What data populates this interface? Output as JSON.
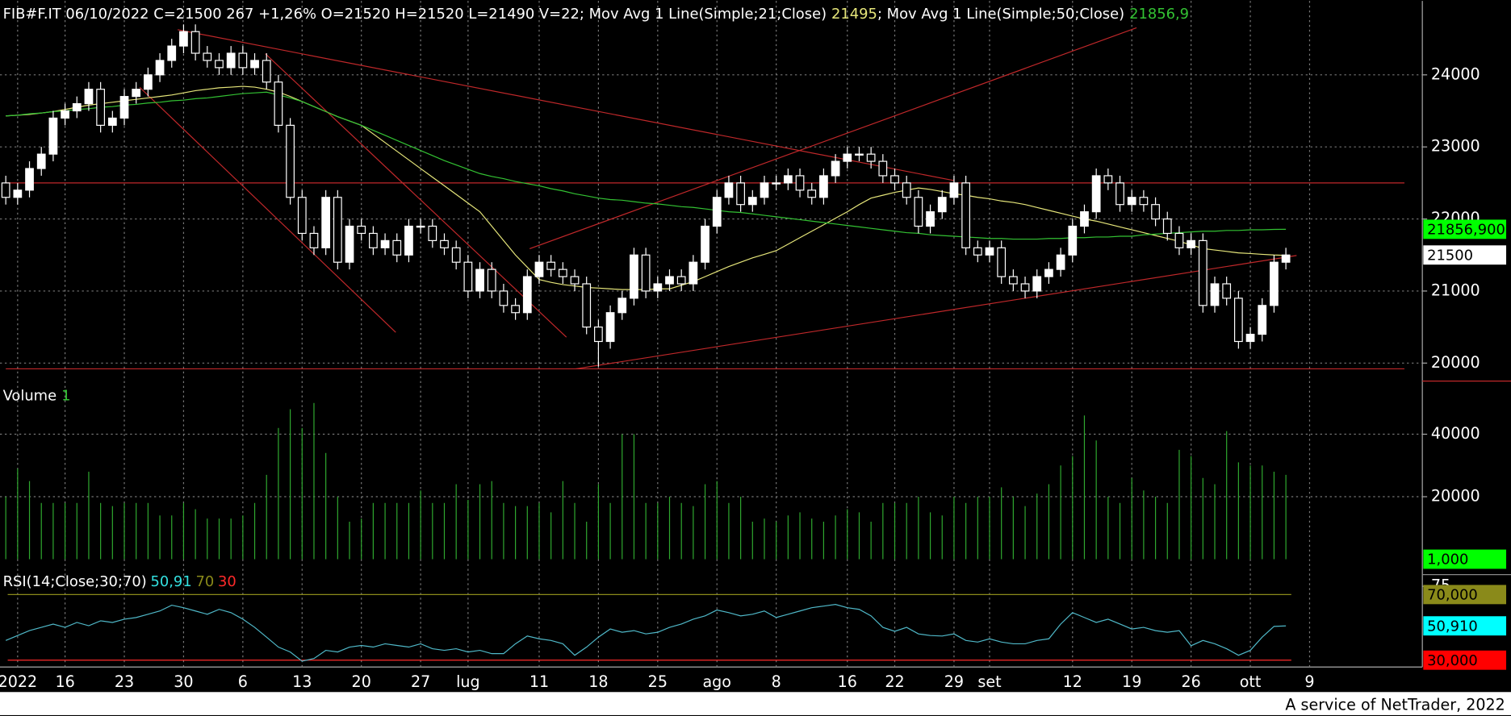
{
  "chart_data": [
    {
      "type": "candlestick",
      "title": "FIB#F.IT 06/10/2022 C=21500 267 +1,26% O=21520 H=21520 L=21490 V=22",
      "categories": [
        null,
        "2022",
        null,
        null,
        null,
        "16",
        null,
        null,
        null,
        null,
        "23",
        null,
        null,
        null,
        null,
        "30",
        null,
        null,
        null,
        null,
        "6",
        null,
        null,
        null,
        null,
        "13",
        null,
        null,
        null,
        null,
        "20",
        null,
        null,
        null,
        null,
        "27",
        null,
        null,
        null,
        "lug",
        null,
        null,
        null,
        null,
        null,
        "11",
        null,
        null,
        null,
        null,
        "18",
        null,
        null,
        null,
        null,
        "25",
        null,
        null,
        null,
        null,
        "ago",
        null,
        null,
        null,
        null,
        "8",
        null,
        null,
        null,
        null,
        null,
        "16",
        null,
        null,
        null,
        "22",
        null,
        null,
        null,
        null,
        "29",
        null,
        null,
        "set",
        null,
        null,
        null,
        null,
        null,
        null,
        "12",
        null,
        null,
        null,
        null,
        "19",
        null,
        null,
        null,
        null,
        "26",
        null,
        null,
        null,
        null,
        "ott",
        null,
        null,
        null,
        null,
        "9"
      ],
      "open": [
        22500,
        22300,
        22400,
        22700,
        22900,
        23400,
        23500,
        23600,
        23800,
        23300,
        23400,
        23700,
        23800,
        24000,
        24200,
        24400,
        24600,
        24300,
        24200,
        24100,
        24300,
        24100,
        24200,
        23900,
        23300,
        22300,
        21800,
        21600,
        22300,
        21400,
        21900,
        21800,
        21600,
        21700,
        21500,
        21900,
        21900,
        21700,
        21600,
        21400,
        21000,
        21300,
        21000,
        20800,
        20700,
        21200,
        21400,
        21300,
        21200,
        21100,
        20500,
        20300,
        20700,
        20900,
        21500,
        21000,
        21100,
        21200,
        21100,
        21400,
        21900,
        22300,
        22500,
        22200,
        22300,
        22500,
        22500,
        22600,
        22400,
        22300,
        22600,
        22800,
        22900,
        22900,
        22800,
        22600,
        22500,
        22300,
        21900,
        22100,
        22300,
        22500,
        21600,
        21500,
        21600,
        21200,
        21100,
        21000,
        21200,
        21300,
        21500,
        21900,
        22100,
        22600,
        22500,
        22200,
        22300,
        22200,
        22000,
        21800,
        21600,
        21700,
        20800,
        21100,
        20900,
        20300,
        20400,
        20800,
        21400,
        null,
        null
      ],
      "high": [
        22600,
        22500,
        22800,
        23000,
        23500,
        23600,
        23700,
        23900,
        23900,
        23500,
        23800,
        23900,
        24100,
        24300,
        24500,
        24700,
        24700,
        24400,
        24300,
        24400,
        24400,
        24300,
        24300,
        24000,
        23400,
        22400,
        21900,
        22400,
        22400,
        22000,
        22000,
        21900,
        21800,
        21800,
        22000,
        22000,
        22000,
        21800,
        21700,
        21500,
        21400,
        21400,
        21100,
        20900,
        21300,
        21500,
        21500,
        21400,
        21300,
        21200,
        20600,
        20800,
        21000,
        21600,
        21600,
        21200,
        21300,
        21300,
        21500,
        22000,
        22400,
        22600,
        22600,
        22400,
        22600,
        22600,
        22700,
        22700,
        22500,
        22700,
        22900,
        23000,
        23000,
        23000,
        22900,
        22700,
        22600,
        22400,
        22200,
        22400,
        22600,
        22600,
        21700,
        21700,
        21700,
        21300,
        21200,
        21300,
        21400,
        21600,
        22000,
        22200,
        22700,
        22700,
        22600,
        22400,
        22400,
        22300,
        22100,
        21900,
        21800,
        21800,
        21200,
        21200,
        21000,
        20500,
        20900,
        21500,
        21600,
        null,
        null
      ],
      "low": [
        22200,
        22200,
        22300,
        22600,
        22800,
        23300,
        23400,
        23500,
        23200,
        23200,
        23300,
        23600,
        23700,
        23900,
        24100,
        24300,
        24200,
        24100,
        24000,
        24000,
        24000,
        24000,
        23800,
        23200,
        22200,
        21700,
        21500,
        21500,
        21300,
        21300,
        21700,
        21500,
        21500,
        21400,
        21400,
        21800,
        21600,
        21500,
        21300,
        20900,
        20900,
        20900,
        20700,
        20600,
        20600,
        21100,
        21200,
        21100,
        21000,
        20400,
        19950,
        20200,
        20600,
        20800,
        20900,
        20900,
        21000,
        21000,
        21000,
        21300,
        21800,
        22200,
        22100,
        22100,
        22200,
        22400,
        22400,
        22300,
        22200,
        22200,
        22500,
        22700,
        22800,
        22700,
        22500,
        22400,
        22200,
        21800,
        21800,
        22000,
        22200,
        21500,
        21400,
        21400,
        21100,
        21000,
        20900,
        20900,
        21100,
        21200,
        21400,
        21800,
        22000,
        22400,
        22100,
        22100,
        22100,
        21900,
        21700,
        21500,
        21500,
        20700,
        20700,
        20800,
        20200,
        20200,
        20300,
        20700,
        21300,
        null,
        null
      ],
      "close": [
        22300,
        22400,
        22700,
        22900,
        23400,
        23500,
        23600,
        23800,
        23300,
        23400,
        23700,
        23800,
        24000,
        24200,
        24400,
        24600,
        24300,
        24200,
        24100,
        24300,
        24100,
        24200,
        23900,
        23300,
        22300,
        21800,
        21600,
        22300,
        21400,
        21900,
        21800,
        21600,
        21700,
        21500,
        21900,
        21900,
        21700,
        21600,
        21400,
        21000,
        21300,
        21000,
        20800,
        20700,
        21200,
        21400,
        21300,
        21200,
        21100,
        20500,
        20300,
        20700,
        20900,
        21500,
        21000,
        21100,
        21200,
        21100,
        21400,
        21900,
        22300,
        22500,
        22200,
        22300,
        22500,
        22500,
        22600,
        22400,
        22300,
        22600,
        22800,
        22900,
        22900,
        22800,
        22600,
        22500,
        22300,
        21900,
        22100,
        22300,
        22500,
        21600,
        21500,
        21600,
        21200,
        21100,
        21000,
        21200,
        21300,
        21500,
        21900,
        22100,
        22600,
        22500,
        22200,
        22300,
        22200,
        22000,
        21800,
        21600,
        21700,
        20800,
        21100,
        20900,
        20300,
        20400,
        20800,
        21400,
        21500,
        null,
        null
      ],
      "color_up": "#ffffff",
      "color_down": "#000000",
      "wick_color": "#ffffff",
      "series": [
        {
          "name": "; Mov Avg 1 Line(Simple;21;Close)",
          "label": "21495",
          "color": "#e6e67a",
          "values": [
            23430,
            23440,
            23450,
            23470,
            23490,
            23520,
            23550,
            23580,
            23600,
            23620,
            23640,
            23660,
            23680,
            23700,
            23720,
            23750,
            23780,
            23800,
            23820,
            23830,
            23840,
            23830,
            23800,
            23760,
            23700,
            23630,
            23560,
            23490,
            23420,
            23360,
            23300,
            23180,
            23060,
            22940,
            22820,
            22700,
            22580,
            22460,
            22340,
            22220,
            22100,
            21900,
            21700,
            21500,
            21330,
            21160,
            21120,
            21090,
            21070,
            21050,
            21040,
            21030,
            21020,
            21020,
            21020,
            21030,
            21030,
            21080,
            21130,
            21200,
            21270,
            21340,
            21400,
            21460,
            21510,
            21560,
            21650,
            21740,
            21830,
            21920,
            22010,
            22100,
            22200,
            22290,
            22330,
            22370,
            22400,
            22430,
            22410,
            22380,
            22350,
            22330,
            22300,
            22280,
            22250,
            22230,
            22200,
            22160,
            22120,
            22080,
            22040,
            22000,
            21970,
            21930,
            21890,
            21850,
            21810,
            21770,
            21730,
            21690,
            21640,
            21590,
            21570,
            21550,
            21530,
            21520,
            21510,
            21500,
            21495,
            null,
            null
          ]
        },
        {
          "name": "; Mov Avg 1 Line(Simple;50;Close)",
          "label": "21856,9",
          "color": "#33c233",
          "values": [
            23430,
            23440,
            23460,
            23470,
            23490,
            23500,
            23520,
            23530,
            23550,
            23560,
            23580,
            23590,
            23610,
            23620,
            23640,
            23650,
            23670,
            23680,
            23700,
            23720,
            23740,
            23750,
            23760,
            23720,
            23680,
            23630,
            23560,
            23490,
            23420,
            23360,
            23300,
            23230,
            23160,
            23090,
            23020,
            22950,
            22880,
            22810,
            22750,
            22690,
            22630,
            22590,
            22560,
            22520,
            22490,
            22460,
            22420,
            22390,
            22350,
            22320,
            22290,
            22270,
            22260,
            22240,
            22220,
            22210,
            22190,
            22170,
            22160,
            22140,
            22120,
            22100,
            22090,
            22070,
            22050,
            22030,
            22010,
            21990,
            21970,
            21950,
            21930,
            21910,
            21890,
            21870,
            21850,
            21830,
            21810,
            21800,
            21780,
            21770,
            21760,
            21750,
            21740,
            21730,
            21730,
            21720,
            21720,
            21720,
            21730,
            21730,
            21740,
            21740,
            21750,
            21750,
            21760,
            21760,
            21780,
            21790,
            21800,
            21810,
            21820,
            21830,
            21830,
            21840,
            21840,
            21850,
            21850,
            21855,
            21856.9,
            null,
            null
          ]
        }
      ],
      "ylim": [
        19750,
        25000
      ],
      "yticks": [
        20000,
        21000,
        22000,
        23000,
        24000
      ],
      "grid": true,
      "y_markers": [
        {
          "value": 21856.9,
          "label": "21856,900",
          "color": "#00ff00"
        },
        {
          "value": 21500,
          "label": "21500",
          "color": "#ffffff"
        }
      ],
      "trendline_color": "#c0282a",
      "trendlines": [
        {
          "x": [
            0,
            118
          ],
          "y": [
            22500,
            22500
          ]
        },
        {
          "x": [
            0,
            118
          ],
          "y": [
            19920,
            19920
          ]
        },
        {
          "x": [
            14.5,
            80
          ],
          "y": [
            24627,
            22533
          ]
        },
        {
          "x": [
            11.3,
            32.9
          ],
          "y": [
            23827,
            20427
          ]
        },
        {
          "x": [
            21.9,
            47.3
          ],
          "y": [
            24293,
            20360
          ]
        },
        {
          "x": [
            44.2,
            95.4
          ],
          "y": [
            21587,
            24653
          ]
        },
        {
          "x": [
            48.1,
            108.9
          ],
          "y": [
            19920,
            21493
          ]
        }
      ]
    },
    {
      "type": "bar",
      "title": "Volume",
      "label": "1",
      "label_color": "#33c233",
      "color": "#2fa82f",
      "values": [
        20000,
        29000,
        25000,
        18000,
        18000,
        18000,
        18000,
        28000,
        18000,
        17000,
        18000,
        18000,
        18000,
        14000,
        14000,
        18000,
        16000,
        13000,
        13000,
        13000,
        14000,
        18000,
        27000,
        42000,
        48000,
        42000,
        50000,
        34000,
        20000,
        12000,
        13000,
        18000,
        18000,
        18000,
        18000,
        22000,
        18000,
        18000,
        24000,
        19000,
        24000,
        25000,
        18000,
        17000,
        17000,
        18000,
        15000,
        25000,
        18000,
        12000,
        24000,
        18000,
        40000,
        40000,
        18000,
        18000,
        20000,
        18000,
        17000,
        24000,
        25000,
        18000,
        20000,
        12000,
        13000,
        12000,
        14000,
        15000,
        13000,
        12000,
        14000,
        16000,
        15000,
        12000,
        18000,
        18000,
        18000,
        20000,
        15000,
        14000,
        20000,
        18000,
        20000,
        20000,
        23000,
        20000,
        17000,
        21000,
        24000,
        30000,
        33000,
        46000,
        38000,
        20000,
        18000,
        26000,
        22000,
        20000,
        18000,
        35000,
        33000,
        26000,
        24000,
        41000,
        31000,
        30000,
        30000,
        28000,
        27000,
        null,
        null
      ],
      "ylim": [
        0,
        57000
      ],
      "yticks": [
        20000,
        40000
      ],
      "grid": true,
      "y_markers": [
        {
          "value": 1,
          "label": "1,000",
          "color": "#00ff00"
        }
      ]
    },
    {
      "type": "line",
      "title": "RSI(14;Close;30;70)",
      "label": "50,91",
      "color": "#4fb8c8",
      "label_color": "#33e0e0",
      "values": [
        42,
        45,
        48,
        50,
        52,
        50,
        53,
        51,
        54,
        53,
        55,
        56,
        58,
        60,
        63.5,
        62,
        60,
        58,
        61,
        59,
        55,
        50,
        44,
        38,
        35,
        29.4,
        31,
        36,
        35,
        38,
        39,
        38,
        40,
        39,
        38,
        40,
        37,
        36,
        37,
        35,
        36,
        34,
        34,
        40,
        44.7,
        43,
        42,
        40,
        33,
        38,
        44,
        49,
        47,
        48,
        46,
        47,
        50,
        52,
        55,
        57,
        60.6,
        59,
        57,
        58,
        60,
        56,
        58,
        60,
        62,
        63,
        64,
        62,
        61,
        57,
        50,
        47.6,
        50,
        46,
        45,
        44.7,
        46,
        42,
        41,
        43,
        41,
        40,
        40,
        42,
        43,
        52,
        59,
        56,
        53,
        55,
        52,
        49,
        50,
        48,
        47,
        48,
        38.8,
        42,
        40,
        37,
        33,
        36,
        44,
        50.6,
        50.91,
        null,
        null
      ],
      "levels": [
        {
          "value": 30,
          "color": "#ff2a2a"
        },
        {
          "value": 70,
          "color": "#8a8a1a"
        }
      ],
      "ylim": [
        27,
        81
      ],
      "yticks": [
        75
      ],
      "grid": false,
      "y_markers": [
        {
          "value": 70,
          "label": "70,000",
          "color": "#8a8a1a"
        },
        {
          "value": 50.91,
          "label": "50,910",
          "color": "#00ffff"
        },
        {
          "value": 30,
          "label": "30,000",
          "color": "#ff0000"
        }
      ]
    }
  ],
  "footer": "A service of NetTrader, 2022"
}
